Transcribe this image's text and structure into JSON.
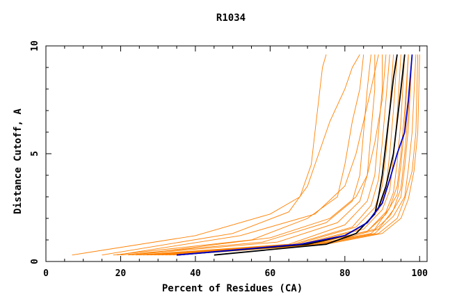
{
  "chart_data": {
    "type": "line",
    "title": "R1034",
    "xlabel": "Percent of Residues (CA)",
    "ylabel": "Distance Cutoff, A",
    "xlim": [
      0,
      102
    ],
    "ylim": [
      0,
      10
    ],
    "xticks": [
      0,
      20,
      40,
      60,
      80,
      100
    ],
    "yticks": [
      0,
      5,
      10
    ],
    "grid": false,
    "colors": {
      "predictions": "#ff8000",
      "highlight_black": "#000000",
      "highlight_blue": "#0000cc"
    },
    "series": [
      {
        "role": "prediction",
        "color": "#ff8000",
        "points": [
          [
            7,
            0.3
          ],
          [
            40,
            1.2
          ],
          [
            60,
            2.2
          ],
          [
            68,
            3.0
          ],
          [
            71,
            4.5
          ],
          [
            72,
            6.0
          ],
          [
            73,
            7.5
          ],
          [
            74,
            9.0
          ],
          [
            75,
            9.6
          ]
        ]
      },
      {
        "role": "prediction",
        "color": "#ff8000",
        "points": [
          [
            15,
            0.3
          ],
          [
            50,
            1.3
          ],
          [
            65,
            2.3
          ],
          [
            70,
            3.5
          ],
          [
            73,
            5.0
          ],
          [
            76,
            6.5
          ],
          [
            80,
            8.0
          ],
          [
            82,
            9.0
          ],
          [
            84,
            9.6
          ]
        ]
      },
      {
        "role": "prediction",
        "color": "#ff8000",
        "points": [
          [
            18,
            0.3
          ],
          [
            55,
            1.0
          ],
          [
            70,
            2.0
          ],
          [
            78,
            3.0
          ],
          [
            80,
            4.5
          ],
          [
            82,
            6.5
          ],
          [
            84,
            8.0
          ],
          [
            85,
            9.6
          ]
        ]
      },
      {
        "role": "prediction",
        "color": "#ff8000",
        "points": [
          [
            20,
            0.3
          ],
          [
            58,
            0.9
          ],
          [
            75,
            1.8
          ],
          [
            82,
            2.8
          ],
          [
            84,
            4.0
          ],
          [
            85,
            6.0
          ],
          [
            86,
            8.0
          ],
          [
            87,
            9.6
          ]
        ]
      },
      {
        "role": "prediction",
        "color": "#ff8000",
        "points": [
          [
            22,
            0.3
          ],
          [
            62,
            0.9
          ],
          [
            78,
            1.8
          ],
          [
            84,
            2.8
          ],
          [
            86,
            4.0
          ],
          [
            87,
            6.0
          ],
          [
            88,
            8.0
          ],
          [
            88,
            9.6
          ]
        ]
      },
      {
        "role": "prediction",
        "color": "#ff8000",
        "points": [
          [
            24,
            0.3
          ],
          [
            65,
            0.8
          ],
          [
            80,
            1.7
          ],
          [
            86,
            2.8
          ],
          [
            88,
            4.0
          ],
          [
            89,
            6.0
          ],
          [
            90,
            8.0
          ],
          [
            90,
            9.6
          ]
        ]
      },
      {
        "role": "prediction",
        "color": "#ff8000",
        "points": [
          [
            25,
            0.3
          ],
          [
            66,
            0.8
          ],
          [
            82,
            1.6
          ],
          [
            87,
            2.6
          ],
          [
            89,
            3.8
          ],
          [
            90,
            5.5
          ],
          [
            91,
            7.5
          ],
          [
            92,
            9.6
          ]
        ]
      },
      {
        "role": "prediction",
        "color": "#ff8000",
        "points": [
          [
            26,
            0.3
          ],
          [
            67,
            0.8
          ],
          [
            83,
            1.6
          ],
          [
            88,
            2.5
          ],
          [
            90,
            3.5
          ],
          [
            91,
            5.0
          ],
          [
            92,
            7.0
          ],
          [
            93,
            9.6
          ]
        ]
      },
      {
        "role": "prediction",
        "color": "#ff8000",
        "points": [
          [
            27,
            0.3
          ],
          [
            68,
            0.8
          ],
          [
            84,
            1.5
          ],
          [
            89,
            2.4
          ],
          [
            91,
            3.4
          ],
          [
            92,
            5.0
          ],
          [
            93,
            7.0
          ],
          [
            94,
            9.6
          ]
        ]
      },
      {
        "role": "prediction",
        "color": "#ff8000",
        "points": [
          [
            28,
            0.3
          ],
          [
            69,
            0.8
          ],
          [
            85,
            1.5
          ],
          [
            90,
            2.4
          ],
          [
            92,
            3.3
          ],
          [
            93,
            4.8
          ],
          [
            94,
            6.8
          ],
          [
            95,
            9.6
          ]
        ]
      },
      {
        "role": "prediction",
        "color": "#ff8000",
        "points": [
          [
            29,
            0.3
          ],
          [
            70,
            0.8
          ],
          [
            86,
            1.4
          ],
          [
            91,
            2.3
          ],
          [
            93,
            3.2
          ],
          [
            94,
            4.6
          ],
          [
            95,
            6.5
          ],
          [
            96,
            9.6
          ]
        ]
      },
      {
        "role": "prediction",
        "color": "#ff8000",
        "points": [
          [
            30,
            0.3
          ],
          [
            71,
            0.8
          ],
          [
            86,
            1.4
          ],
          [
            91,
            2.2
          ],
          [
            94,
            3.1
          ],
          [
            95,
            4.5
          ],
          [
            96,
            6.3
          ],
          [
            97,
            9.6
          ]
        ]
      },
      {
        "role": "prediction",
        "color": "#ff8000",
        "points": [
          [
            31,
            0.3
          ],
          [
            72,
            0.8
          ],
          [
            87,
            1.3
          ],
          [
            92,
            2.1
          ],
          [
            95,
            3.0
          ],
          [
            96,
            4.4
          ],
          [
            97,
            6.2
          ],
          [
            98,
            9.6
          ]
        ]
      },
      {
        "role": "prediction",
        "color": "#ff8000",
        "points": [
          [
            32,
            0.3
          ],
          [
            73,
            0.8
          ],
          [
            88,
            1.3
          ],
          [
            93,
            2.1
          ],
          [
            96,
            3.0
          ],
          [
            97,
            4.3
          ],
          [
            98,
            6.0
          ],
          [
            99,
            9.6
          ]
        ]
      },
      {
        "role": "prediction",
        "color": "#ff8000",
        "points": [
          [
            33,
            0.3
          ],
          [
            74,
            0.8
          ],
          [
            89,
            1.3
          ],
          [
            94,
            2.0
          ],
          [
            96,
            2.9
          ],
          [
            98,
            4.2
          ],
          [
            99,
            6.0
          ],
          [
            99.5,
            9.6
          ]
        ]
      },
      {
        "role": "prediction",
        "color": "#ff8000",
        "points": [
          [
            35,
            0.3
          ],
          [
            75,
            0.8
          ],
          [
            90,
            1.3
          ],
          [
            95,
            2.0
          ],
          [
            97,
            2.9
          ],
          [
            98.5,
            4.2
          ],
          [
            99.5,
            6.0
          ],
          [
            100,
            9.6
          ]
        ]
      },
      {
        "role": "prediction",
        "color": "#ff8000",
        "points": [
          [
            23,
            0.3
          ],
          [
            60,
            1.1
          ],
          [
            76,
            2.0
          ],
          [
            83,
            3.0
          ],
          [
            86,
            4.0
          ],
          [
            88,
            5.5
          ],
          [
            90,
            7.5
          ],
          [
            91,
            9.6
          ]
        ]
      },
      {
        "role": "prediction",
        "color": "#ff8000",
        "points": [
          [
            19,
            0.3
          ],
          [
            52,
            1.2
          ],
          [
            72,
            2.2
          ],
          [
            80,
            3.5
          ],
          [
            83,
            5.0
          ],
          [
            85,
            6.5
          ],
          [
            87,
            8.0
          ],
          [
            89,
            9.6
          ]
        ]
      },
      {
        "role": "prediction",
        "color": "#ff8000",
        "points": [
          [
            34,
            0.3
          ],
          [
            74,
            0.9
          ],
          [
            88,
            1.5
          ],
          [
            92,
            2.5
          ],
          [
            94,
            3.5
          ],
          [
            95,
            5.0
          ],
          [
            96,
            7.0
          ],
          [
            97,
            9.6
          ]
        ]
      },
      {
        "role": "prediction",
        "color": "#ff8000",
        "points": [
          [
            36,
            0.3
          ],
          [
            76,
            0.9
          ],
          [
            89,
            1.5
          ],
          [
            93,
            2.4
          ],
          [
            95,
            3.4
          ],
          [
            96,
            5.0
          ],
          [
            97,
            7.0
          ],
          [
            98,
            9.6
          ]
        ]
      },
      {
        "role": "highlight",
        "color": "#000000",
        "points": [
          [
            45,
            0.3
          ],
          [
            75,
            0.8
          ],
          [
            83,
            1.3
          ],
          [
            88,
            2.2
          ],
          [
            89,
            3.0
          ],
          [
            90,
            4.0
          ],
          [
            91,
            5.5
          ],
          [
            92,
            7.0
          ],
          [
            93,
            8.5
          ],
          [
            94,
            9.6
          ]
        ]
      },
      {
        "role": "highlight",
        "color": "#000000",
        "points": [
          [
            35,
            0.3
          ],
          [
            70,
            0.8
          ],
          [
            80,
            1.2
          ],
          [
            86,
            1.8
          ],
          [
            89,
            2.5
          ],
          [
            91,
            3.5
          ],
          [
            93,
            5.0
          ],
          [
            94,
            6.5
          ],
          [
            95,
            8.0
          ],
          [
            96,
            9.6
          ]
        ]
      },
      {
        "role": "highlight",
        "color": "#0000cc",
        "points": [
          [
            35,
            0.3
          ],
          [
            68,
            0.8
          ],
          [
            80,
            1.2
          ],
          [
            86,
            1.8
          ],
          [
            90,
            2.7
          ],
          [
            92,
            3.8
          ],
          [
            94,
            5.0
          ],
          [
            96,
            6.0
          ],
          [
            97,
            7.5
          ],
          [
            98,
            9.6
          ]
        ]
      }
    ]
  }
}
